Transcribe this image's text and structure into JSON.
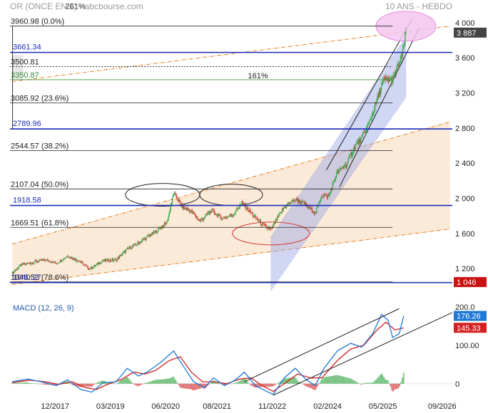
{
  "header": {
    "title": "OR (ONCE EN $) - abcbourse.com",
    "period": "10 ANS - HEBDO"
  },
  "colors": {
    "up": "#3aa84a",
    "down": "#d23a3a",
    "level_blue": "#1a2bb8",
    "channel_fill": "#fbe6d2",
    "channel_line": "#e07a1a",
    "trend_fill": "#9aa6e6",
    "circle_pink": "#e07ad6",
    "circle_red": "#d33a3a",
    "macd": "#1e78d6",
    "signal": "#d32020",
    "last_price_bg": "#444444",
    "last_macd_bg": "#1e78d6",
    "last_signal_bg": "#d32020",
    "low_bg": "#cc1111"
  },
  "chart_data": {
    "type": "candlestick",
    "title": "OR (ONCE EN $) - abcbourse.com",
    "subtitle": "10 ANS - HEBDO",
    "x_ticks": [
      "12/2017",
      "03/2019",
      "06/2020",
      "08/2021",
      "11/2022",
      "02/2024",
      "05/2025",
      "09/2026"
    ],
    "x_tick_years": [
      2017.92,
      2019.17,
      2020.42,
      2021.58,
      2022.83,
      2024.08,
      2025.33,
      2026.67
    ],
    "x_range": [
      2016.9,
      2026.9
    ],
    "y_range": [
      950,
      4080
    ],
    "y_ticks": [
      1200,
      1600,
      2000,
      2400,
      2800,
      3200,
      3600,
      4000
    ],
    "y_tick_labels": [
      "1 200",
      "1 600",
      "2 000",
      "2 400",
      "2 800",
      "3 200",
      "3 600",
      "4 000"
    ],
    "last_price": 3887,
    "last_price_label": "3 887",
    "low_marker": 1046,
    "low_marker_label": "1 046",
    "price_path": [
      [
        2016.95,
        1150
      ],
      [
        2017.15,
        1240
      ],
      [
        2017.4,
        1270
      ],
      [
        2017.7,
        1300
      ],
      [
        2017.95,
        1260
      ],
      [
        2018.2,
        1345
      ],
      [
        2018.45,
        1290
      ],
      [
        2018.7,
        1195
      ],
      [
        2019.0,
        1290
      ],
      [
        2019.3,
        1300
      ],
      [
        2019.55,
        1420
      ],
      [
        2019.8,
        1490
      ],
      [
        2020.0,
        1560
      ],
      [
        2020.2,
        1620
      ],
      [
        2020.45,
        1730
      ],
      [
        2020.6,
        2060
      ],
      [
        2020.8,
        1900
      ],
      [
        2021.0,
        1850
      ],
      [
        2021.2,
        1740
      ],
      [
        2021.45,
        1860
      ],
      [
        2021.7,
        1770
      ],
      [
        2021.95,
        1820
      ],
      [
        2022.15,
        1950
      ],
      [
        2022.3,
        1860
      ],
      [
        2022.6,
        1700
      ],
      [
        2022.8,
        1640
      ],
      [
        2022.95,
        1780
      ],
      [
        2023.1,
        1900
      ],
      [
        2023.35,
        1990
      ],
      [
        2023.6,
        1920
      ],
      [
        2023.8,
        1830
      ],
      [
        2023.95,
        2040
      ],
      [
        2024.1,
        2020
      ],
      [
        2024.3,
        2300
      ],
      [
        2024.5,
        2380
      ],
      [
        2024.7,
        2600
      ],
      [
        2024.85,
        2680
      ],
      [
        2025.05,
        2900
      ],
      [
        2025.25,
        3200
      ],
      [
        2025.35,
        3350
      ],
      [
        2025.55,
        3350
      ],
      [
        2025.75,
        3600
      ],
      [
        2025.85,
        3887
      ]
    ],
    "fibonacci": [
      {
        "label": "3960.98  (0.0%)",
        "value": 3960.98
      },
      {
        "label": "3500.81",
        "value": 3500.81
      },
      {
        "label": "3350.87",
        "value": 3350.87
      },
      {
        "label": "3085.92  (23.6%)",
        "value": 3085.92
      },
      {
        "label": "2544.57  (38.2%)",
        "value": 2544.57
      },
      {
        "label": "2107.04  (50.0%)",
        "value": 2107.04
      },
      {
        "label": "1669.51  (61.8%)",
        "value": 1669.51
      },
      {
        "label": "1048.52  (78.6%)",
        "value": 1048.52
      }
    ],
    "fib_top_label": "261%",
    "fib_mid_label": "161%",
    "blue_levels": [
      {
        "label": "3661.34",
        "value": 3661.34
      },
      {
        "label": "2789.96",
        "value": 2789.96
      },
      {
        "label": "1918.58",
        "value": 1918.58
      },
      {
        "label": "1040.27",
        "value": 1040.27
      }
    ],
    "macd": {
      "title": "MACD (12, 26, 9)",
      "y_range": [
        -30,
        220
      ],
      "y_ticks": [
        0,
        100.0,
        200.0
      ],
      "y_tick_labels": [
        "0",
        "100.00",
        "200.0"
      ],
      "last_macd": 176.26,
      "last_macd_label": "176.26",
      "last_signal": 145.33,
      "last_signal_label": "145.33",
      "macd_path": [
        [
          2016.95,
          5
        ],
        [
          2017.3,
          12
        ],
        [
          2017.6,
          5
        ],
        [
          2017.95,
          -5
        ],
        [
          2018.2,
          10
        ],
        [
          2018.5,
          -15
        ],
        [
          2018.75,
          -22
        ],
        [
          2019.0,
          2
        ],
        [
          2019.3,
          5
        ],
        [
          2019.55,
          40
        ],
        [
          2019.8,
          20
        ],
        [
          2020.0,
          30
        ],
        [
          2020.3,
          55
        ],
        [
          2020.6,
          85
        ],
        [
          2020.85,
          40
        ],
        [
          2021.05,
          5
        ],
        [
          2021.3,
          -10
        ],
        [
          2021.5,
          15
        ],
        [
          2021.75,
          -5
        ],
        [
          2022.0,
          10
        ],
        [
          2022.2,
          30
        ],
        [
          2022.45,
          -5
        ],
        [
          2022.7,
          -20
        ],
        [
          2022.85,
          -28
        ],
        [
          2023.1,
          15
        ],
        [
          2023.35,
          40
        ],
        [
          2023.6,
          10
        ],
        [
          2023.8,
          -5
        ],
        [
          2024.0,
          40
        ],
        [
          2024.3,
          85
        ],
        [
          2024.6,
          105
        ],
        [
          2024.85,
          95
        ],
        [
          2025.1,
          130
        ],
        [
          2025.3,
          180
        ],
        [
          2025.45,
          165
        ],
        [
          2025.55,
          120
        ],
        [
          2025.7,
          130
        ],
        [
          2025.8,
          176
        ]
      ],
      "signal_path": [
        [
          2016.95,
          3
        ],
        [
          2017.35,
          9
        ],
        [
          2017.7,
          5
        ],
        [
          2018.0,
          -2
        ],
        [
          2018.3,
          5
        ],
        [
          2018.6,
          -10
        ],
        [
          2018.85,
          -15
        ],
        [
          2019.1,
          -2
        ],
        [
          2019.4,
          10
        ],
        [
          2019.7,
          30
        ],
        [
          2019.95,
          25
        ],
        [
          2020.2,
          35
        ],
        [
          2020.5,
          60
        ],
        [
          2020.75,
          70
        ],
        [
          2021.0,
          30
        ],
        [
          2021.25,
          5
        ],
        [
          2021.5,
          5
        ],
        [
          2021.8,
          0
        ],
        [
          2022.1,
          12
        ],
        [
          2022.35,
          15
        ],
        [
          2022.6,
          -5
        ],
        [
          2022.85,
          -20
        ],
        [
          2023.1,
          0
        ],
        [
          2023.4,
          25
        ],
        [
          2023.7,
          15
        ],
        [
          2023.95,
          15
        ],
        [
          2024.3,
          60
        ],
        [
          2024.6,
          90
        ],
        [
          2024.9,
          100
        ],
        [
          2025.2,
          140
        ],
        [
          2025.4,
          160
        ],
        [
          2025.6,
          140
        ],
        [
          2025.8,
          145
        ]
      ]
    }
  }
}
